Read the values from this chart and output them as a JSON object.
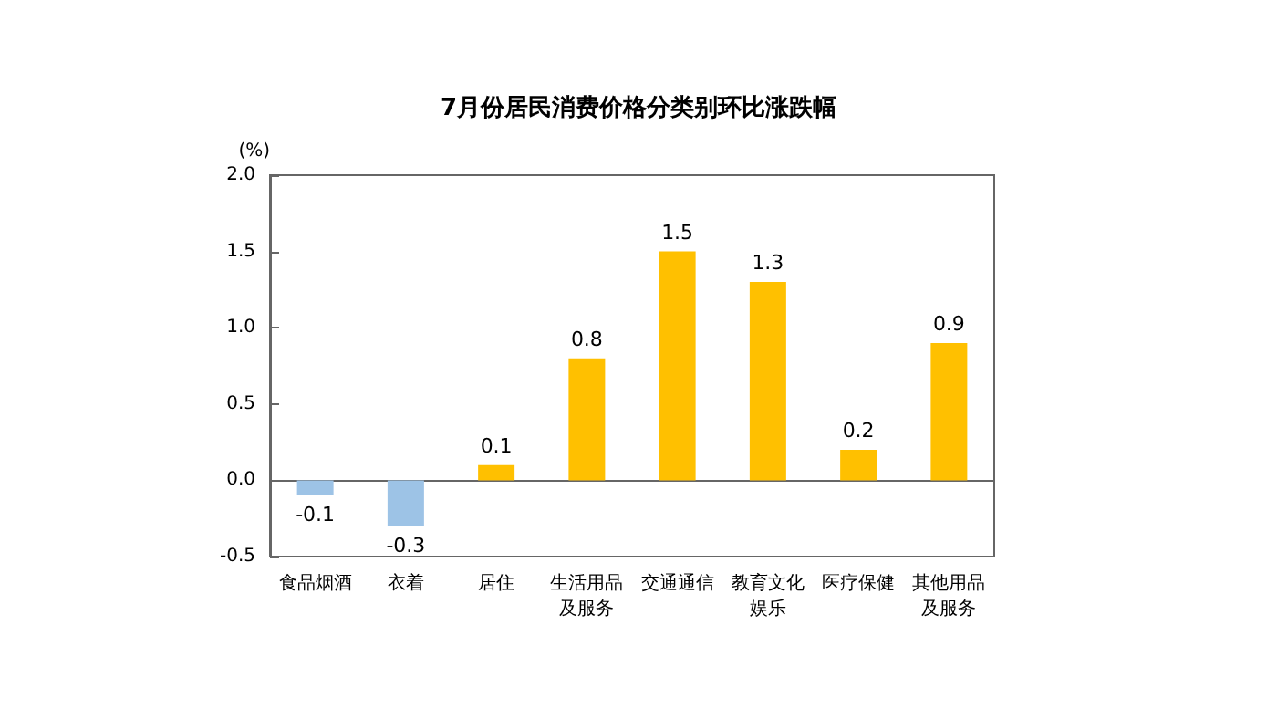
{
  "chart_data": {
    "type": "bar",
    "title": "7月份居民消费价格分类别环比涨跌幅",
    "ylabel": "(%)",
    "categories": [
      "食品烟酒",
      "衣着",
      "居住",
      "生活用品及服务",
      "交通通信",
      "教育文化娱乐",
      "医疗保健",
      "其他用品及服务"
    ],
    "values": [
      -0.1,
      -0.3,
      0.1,
      0.8,
      1.5,
      1.3,
      0.2,
      0.9
    ],
    "colors": [
      "#9dc3e6",
      "#9dc3e6",
      "#ffc000",
      "#ffc000",
      "#ffc000",
      "#ffc000",
      "#ffc000",
      "#ffc000"
    ],
    "ylim": [
      -0.5,
      2.0
    ],
    "yticks": [
      -0.5,
      {
        "value": 0,
        "label": "0.0"
      },
      0.5,
      {
        "value": 1,
        "label": "1.0"
      },
      1.5,
      {
        "value": 2,
        "label": "2.0"
      }
    ],
    "data_labels": true
  }
}
